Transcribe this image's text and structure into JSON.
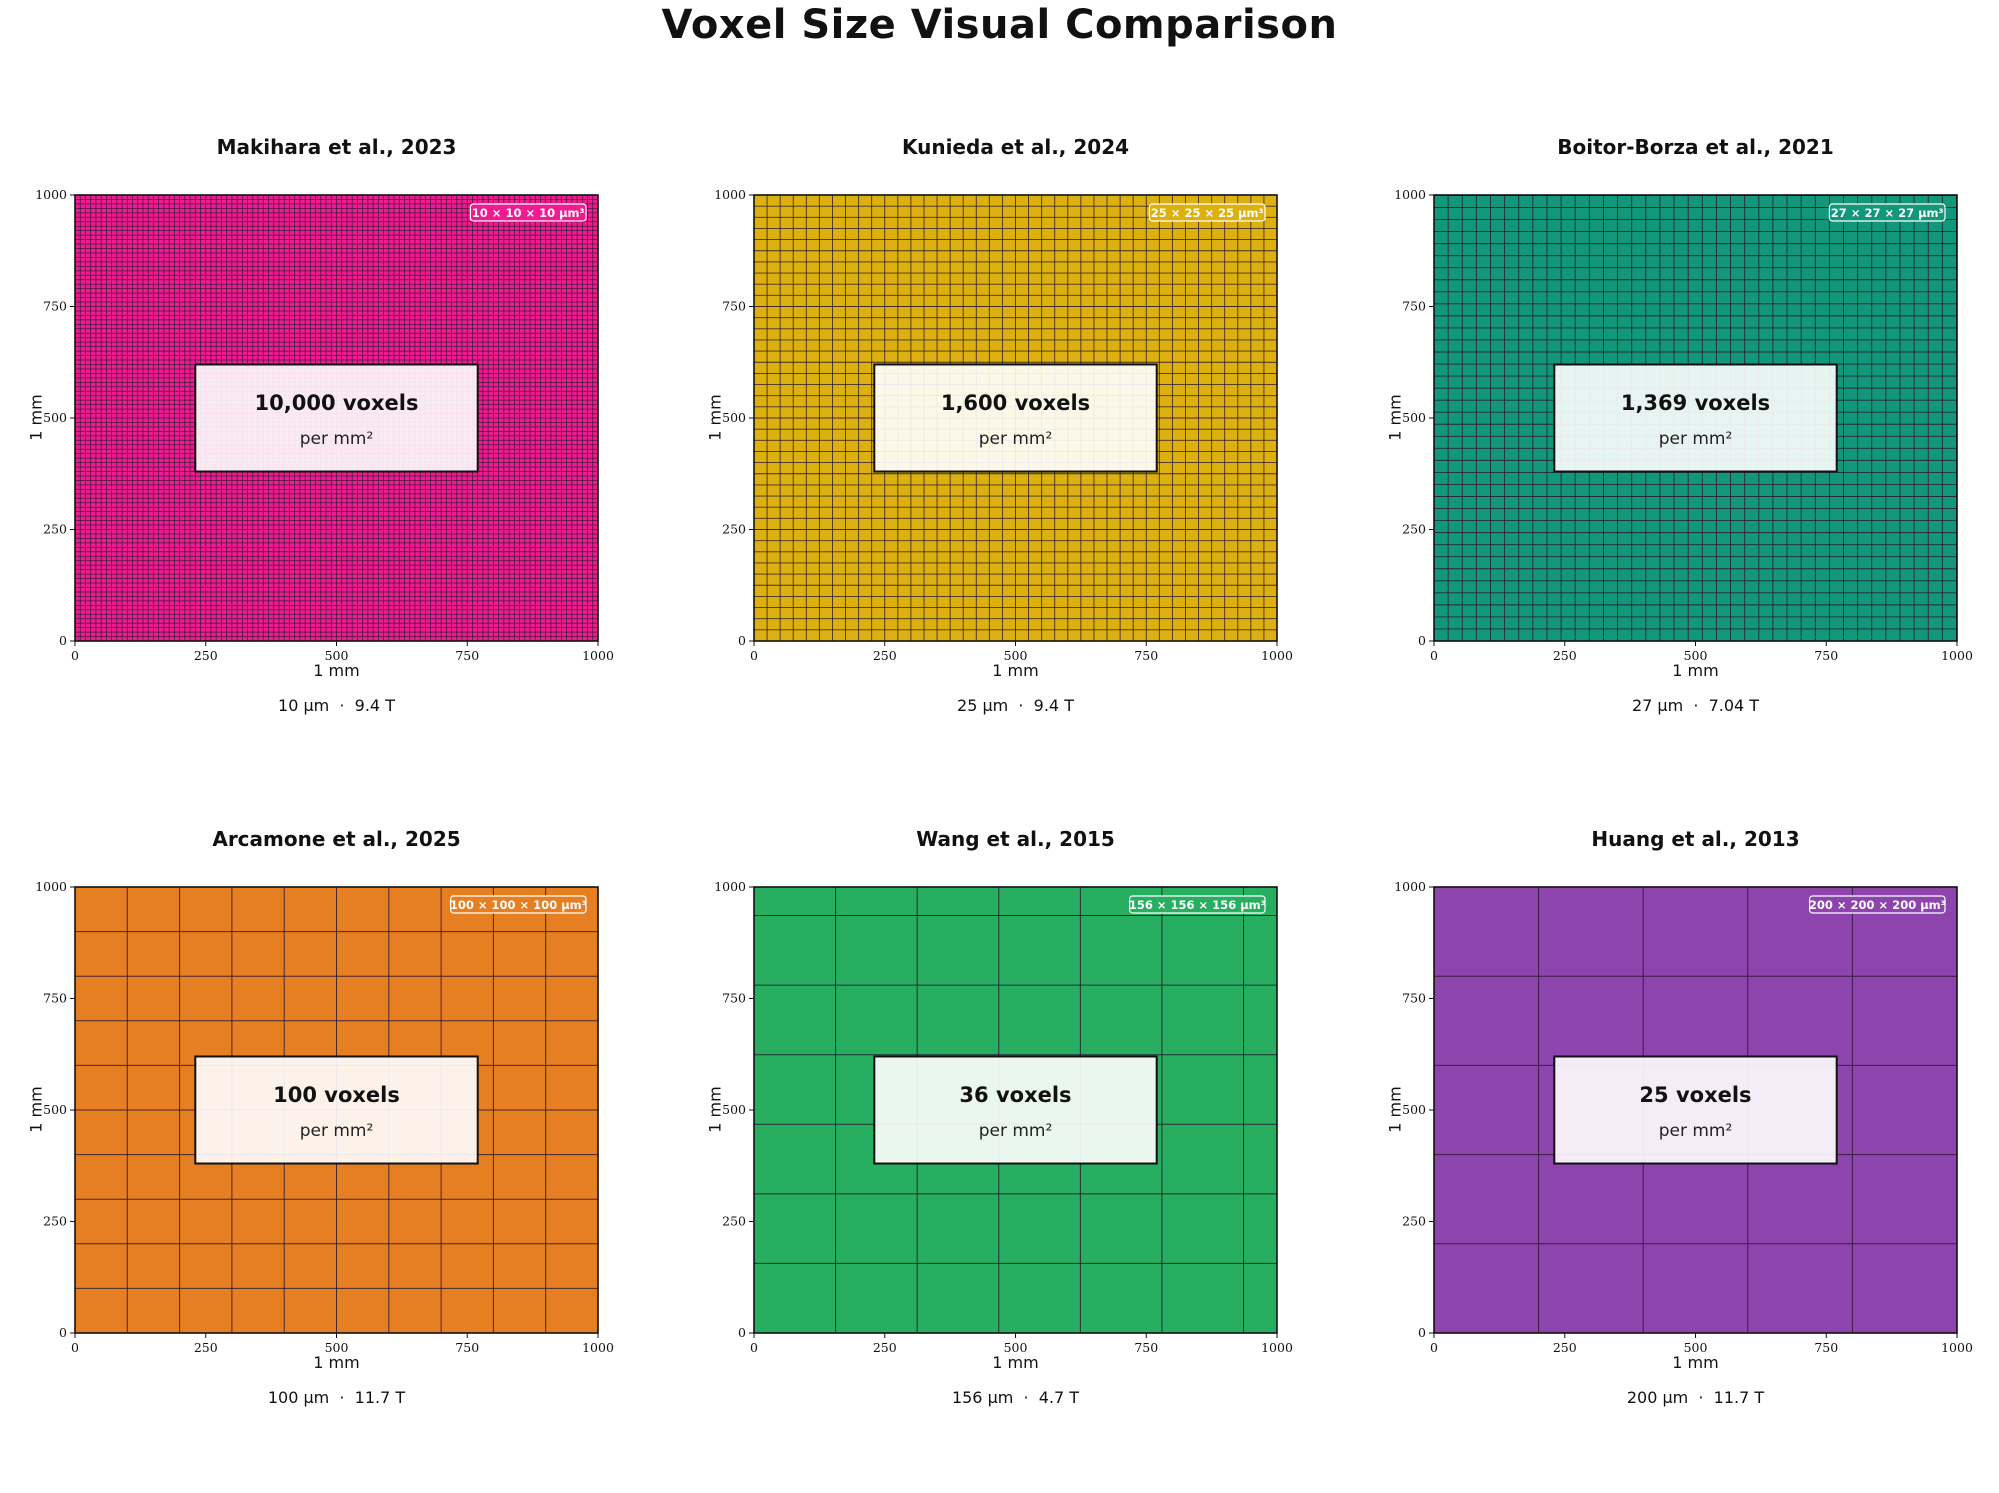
{
  "title": "Voxel Size Visual Comparison",
  "chart_data": [
    {
      "type": "heatmap",
      "title": "Makihara et al., 2023",
      "xlabel": "1 mm",
      "ylabel": "1 mm",
      "xlim": [
        0,
        1000
      ],
      "ylim": [
        0,
        1000
      ],
      "xticks": [
        0,
        250,
        500,
        750,
        1000
      ],
      "yticks": [
        0,
        250,
        500,
        750,
        1000
      ],
      "voxel_um": 10,
      "badge": "10 × 10 × 10 µm³",
      "count_text": "10,000 voxels",
      "unit_text": "per mm²",
      "caption": "10 µm  ·  9.4 T",
      "color": "#f11b91",
      "grid": true
    },
    {
      "type": "heatmap",
      "title": "Kunieda et al., 2024",
      "xlabel": "1 mm",
      "ylabel": "1 mm",
      "xlim": [
        0,
        1000
      ],
      "ylim": [
        0,
        1000
      ],
      "xticks": [
        0,
        250,
        500,
        750,
        1000
      ],
      "yticks": [
        0,
        250,
        500,
        750,
        1000
      ],
      "voxel_um": 25,
      "badge": "25 × 25 × 25 µm³",
      "count_text": "1,600 voxels",
      "unit_text": "per mm²",
      "caption": "25 µm  ·  9.4 T",
      "color": "#dcb10f",
      "grid": true
    },
    {
      "type": "heatmap",
      "title": "Boitor-Borza et al., 2021",
      "xlabel": "1 mm",
      "ylabel": "1 mm",
      "xlim": [
        0,
        1000
      ],
      "ylim": [
        0,
        1000
      ],
      "xticks": [
        0,
        250,
        500,
        750,
        1000
      ],
      "yticks": [
        0,
        250,
        500,
        750,
        1000
      ],
      "voxel_um": 27,
      "badge": "27 × 27 × 27 µm³",
      "count_text": "1,369 voxels",
      "unit_text": "per mm²",
      "caption": "27 µm  ·  7.04 T",
      "color": "#12977a",
      "grid": true
    },
    {
      "type": "heatmap",
      "title": "Arcamone et al., 2025",
      "xlabel": "1 mm",
      "ylabel": "1 mm",
      "xlim": [
        0,
        1000
      ],
      "ylim": [
        0,
        1000
      ],
      "xticks": [
        0,
        250,
        500,
        750,
        1000
      ],
      "yticks": [
        0,
        250,
        500,
        750,
        1000
      ],
      "voxel_um": 100,
      "badge": "100 × 100 × 100 µm³",
      "count_text": "100 voxels",
      "unit_text": "per mm²",
      "caption": "100 µm  ·  11.7 T",
      "color": "#e67f22",
      "grid": true
    },
    {
      "type": "heatmap",
      "title": "Wang et al., 2015",
      "xlabel": "1 mm",
      "ylabel": "1 mm",
      "xlim": [
        0,
        1000
      ],
      "ylim": [
        0,
        1000
      ],
      "xticks": [
        0,
        250,
        500,
        750,
        1000
      ],
      "yticks": [
        0,
        250,
        500,
        750,
        1000
      ],
      "voxel_um": 156,
      "badge": "156 × 156 × 156 µm³",
      "count_text": "36 voxels",
      "unit_text": "per mm²",
      "caption": "156 µm  ·  4.7 T",
      "color": "#27ae60",
      "grid": true
    },
    {
      "type": "heatmap",
      "title": "Huang et al., 2013",
      "xlabel": "1 mm",
      "ylabel": "1 mm",
      "xlim": [
        0,
        1000
      ],
      "ylim": [
        0,
        1000
      ],
      "xticks": [
        0,
        250,
        500,
        750,
        1000
      ],
      "yticks": [
        0,
        250,
        500,
        750,
        1000
      ],
      "voxel_um": 200,
      "badge": "200 × 200 × 200 µm³",
      "count_text": "25 voxels",
      "unit_text": "per mm²",
      "caption": "200 µm  ·  11.7 T",
      "color": "#8e44ad",
      "grid": true
    }
  ]
}
